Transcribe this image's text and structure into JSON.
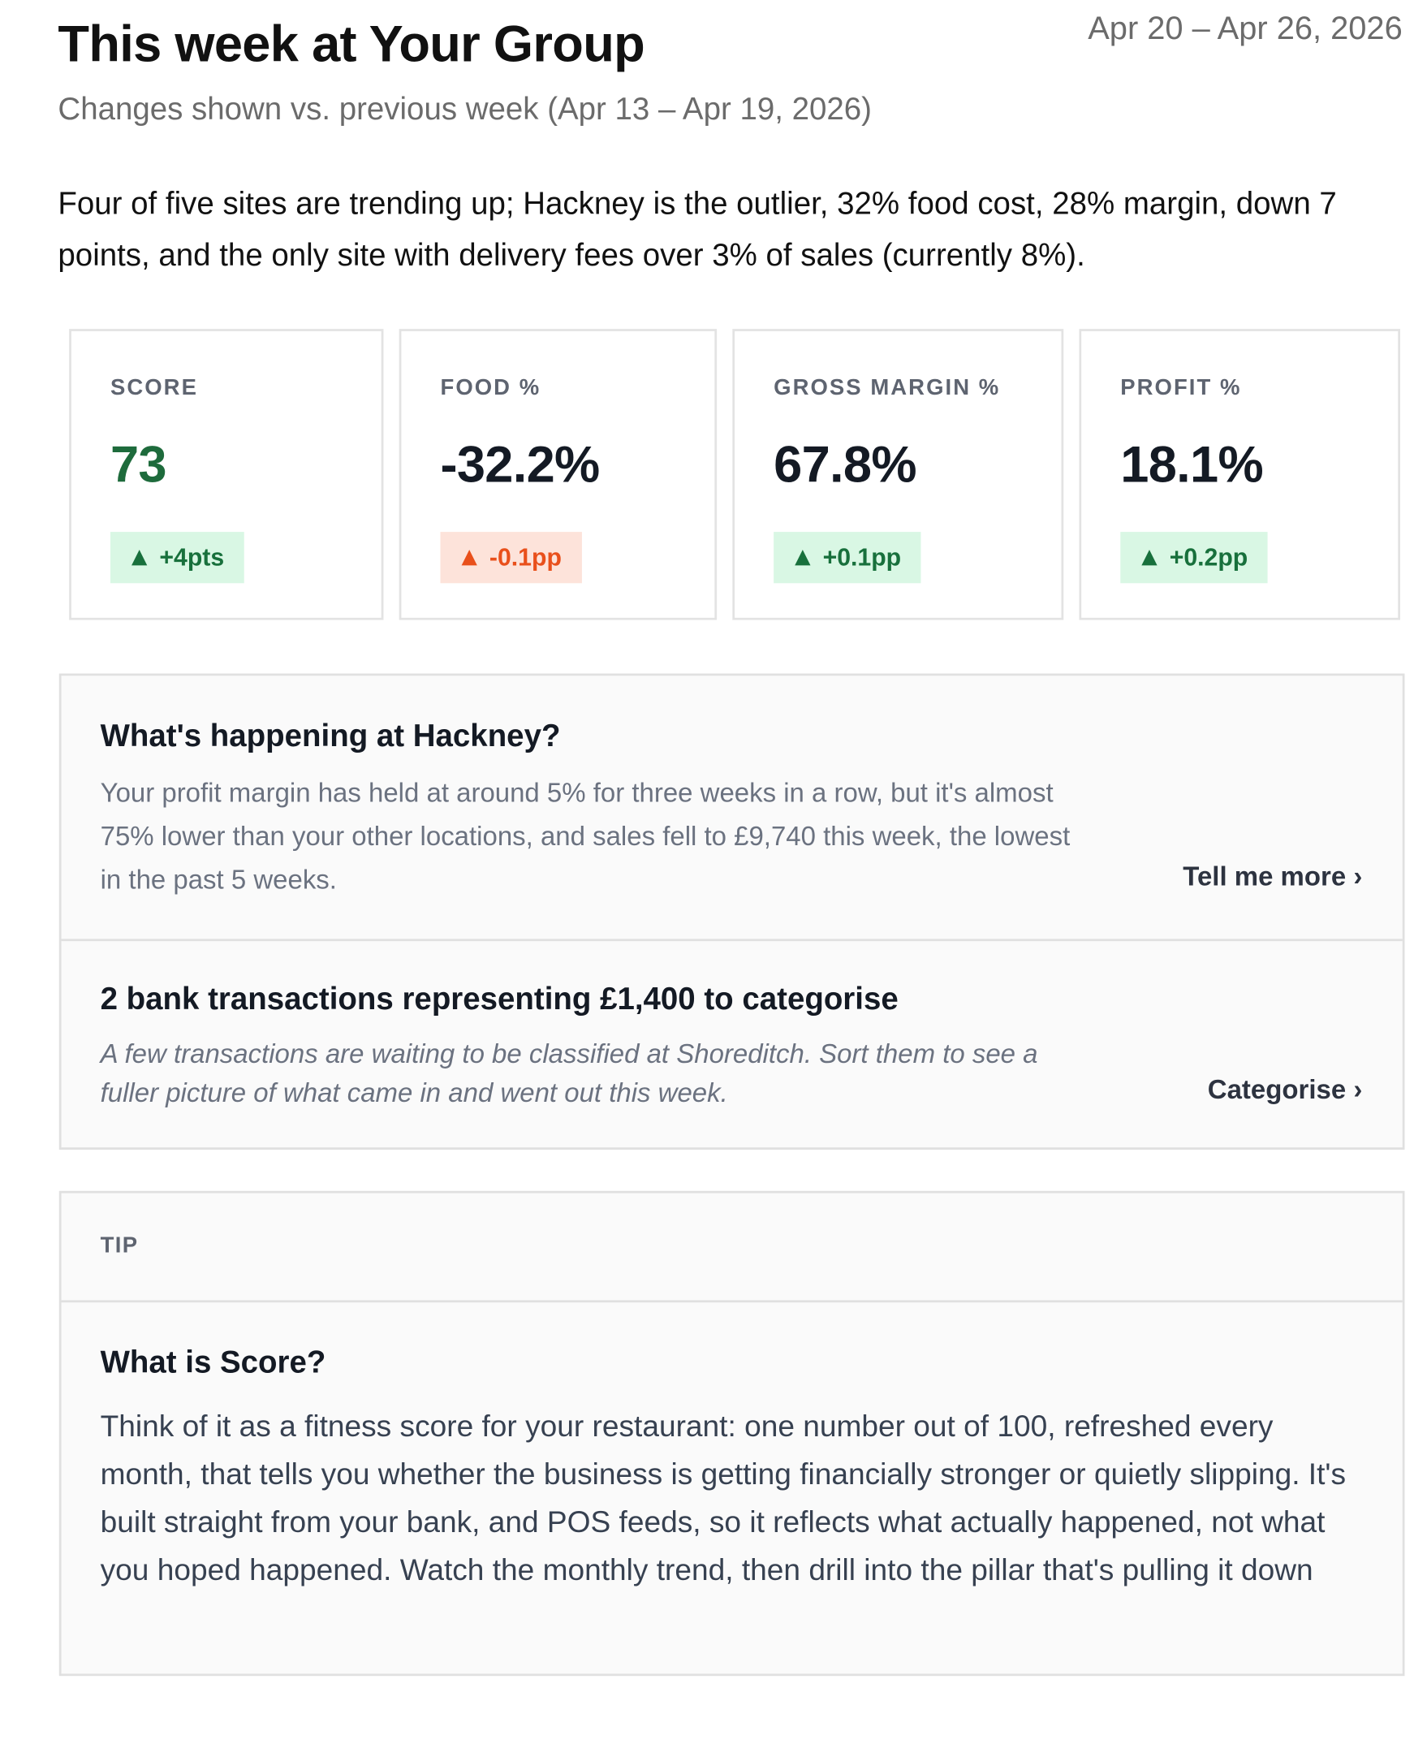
{
  "header": {
    "title": "This week at Your Group",
    "date_range": "Apr 20 – Apr 26, 2026",
    "subtitle": "Changes shown vs. previous week (Apr 13 – Apr 19, 2026)"
  },
  "summary": "Four of five sites are trending up; Hackney is the outlier, 32% food cost, 28% margin, down 7 points, and the only site with delivery fees over 3% of sales (currently 8%).",
  "kpis": [
    {
      "label": "SCORE",
      "value": "73",
      "change": "+4pts"
    },
    {
      "label": "FOOD %",
      "value": "-32.2%",
      "change": "-0.1pp"
    },
    {
      "label": "GROSS MARGIN %",
      "value": "67.8%",
      "change": "+0.1pp"
    },
    {
      "label": "PROFIT %",
      "value": "18.1%",
      "change": "+0.2pp"
    }
  ],
  "insights": [
    {
      "title": "What's happening at Hackney?",
      "body": "Your profit margin has held at around 5% for three weeks in a row, but it's almost 75% lower than your other locations, and sales fell to £9,740 this week, the lowest in the past 5 weeks.",
      "action": "Tell me more ›"
    },
    {
      "title": "2 bank transactions representing £1,400 to categorise",
      "body": "A few transactions are waiting to be classified at Shoreditch. Sort them to see a fuller picture of what came in and went out this week.",
      "action": "Categorise ›"
    }
  ],
  "tip": {
    "label": "TIP",
    "title": "What is Score?",
    "body": "Think of it as a fitness score for your restaurant: one number out of 100, refreshed every month, that tells you whether the business is getting financially stronger or quietly slipping. It's built straight from your bank, and POS feeds, so it reflects what actually happened, not what you hoped happened. Watch the monthly trend, then drill into the pillar that's pulling it down"
  }
}
